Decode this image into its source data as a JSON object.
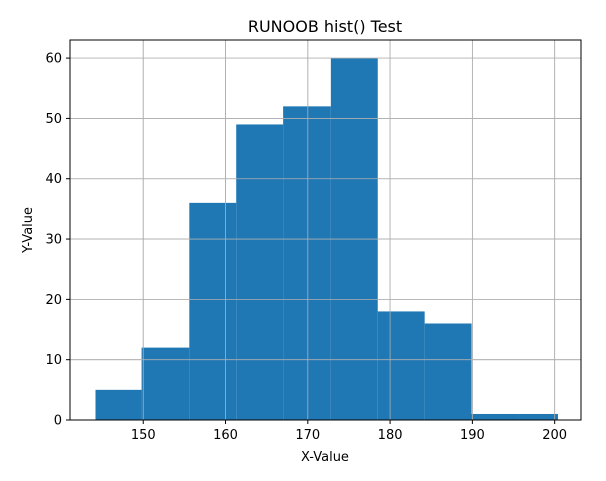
{
  "chart_data": {
    "type": "bar",
    "subtype": "histogram",
    "title": "RUNOOB hist() Test",
    "xlabel": "X-Value",
    "ylabel": "Y-Value",
    "xlim": [
      141.1,
      203.2
    ],
    "ylim": [
      0,
      63
    ],
    "xticks": [
      150,
      160,
      170,
      180,
      190,
      200
    ],
    "yticks": [
      0,
      10,
      20,
      30,
      40,
      50,
      60
    ],
    "grid": true,
    "bar_color": "#1f77b4",
    "bins": [
      {
        "x0": 144.2,
        "x1": 149.8,
        "value": 5
      },
      {
        "x0": 149.8,
        "x1": 155.6,
        "value": 12
      },
      {
        "x0": 155.6,
        "x1": 161.3,
        "value": 36
      },
      {
        "x0": 161.3,
        "x1": 167.0,
        "value": 49
      },
      {
        "x0": 167.0,
        "x1": 172.8,
        "value": 52
      },
      {
        "x0": 172.8,
        "x1": 178.5,
        "value": 60
      },
      {
        "x0": 178.5,
        "x1": 184.2,
        "value": 18
      },
      {
        "x0": 184.2,
        "x1": 189.9,
        "value": 16
      },
      {
        "x0": 189.9,
        "x1": 195.6,
        "value": 1
      },
      {
        "x0": 195.6,
        "x1": 200.4,
        "value": 1
      }
    ]
  }
}
